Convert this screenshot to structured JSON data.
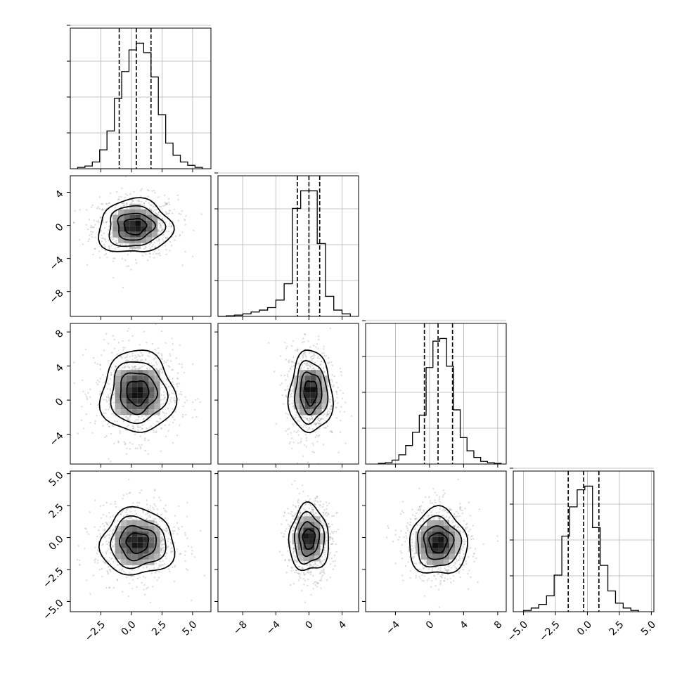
{
  "chart_data": {
    "type": "corner",
    "grid": true,
    "parameters": [
      {
        "range": [
          -5.0,
          6.5
        ],
        "ticks": [
          -2.5,
          0.0,
          2.5,
          5.0
        ],
        "tick_labels": [
          "−2.5",
          "0.0",
          "2.5",
          "5.0"
        ],
        "quantiles": [
          -1.0,
          0.4,
          1.6
        ],
        "hist_bins": [
          -4.4,
          -3.8,
          -3.2,
          -2.6,
          -2.0,
          -1.4,
          -0.8,
          -0.2,
          0.4,
          1.0,
          1.6,
          2.2,
          2.8,
          3.4,
          4.0,
          4.6,
          5.2,
          5.8
        ],
        "hist_counts": [
          0.01,
          0.02,
          0.05,
          0.14,
          0.28,
          0.52,
          0.72,
          0.88,
          0.93,
          0.86,
          0.68,
          0.4,
          0.19,
          0.1,
          0.05,
          0.025,
          0.01
        ]
      },
      {
        "range": [
          -11.0,
          6.0
        ],
        "ticks": [
          -8,
          -4,
          0,
          4
        ],
        "tick_labels": [
          "−8",
          "−4",
          "0",
          "4"
        ],
        "quantiles": [
          -1.4,
          0.0,
          1.3
        ],
        "hist_bins": [
          -11.0,
          -10.0,
          -9.0,
          -8.0,
          -7.0,
          -6.0,
          -5.0,
          -4.0,
          -3.0,
          -2.0,
          -1.0,
          0.0,
          1.0,
          2.0,
          3.0,
          4.0,
          5.0
        ],
        "hist_counts": [
          0.0,
          0.005,
          0.01,
          0.02,
          0.035,
          0.05,
          0.07,
          0.13,
          0.26,
          0.86,
          1.0,
          1.0,
          0.58,
          0.16,
          0.05,
          0.02
        ]
      },
      {
        "range": [
          -7.5,
          9.0
        ],
        "ticks": [
          -4,
          0,
          4,
          8
        ],
        "tick_labels": [
          "−4",
          "0",
          "4",
          "8"
        ],
        "quantiles": [
          -0.6,
          1.0,
          2.7
        ],
        "hist_bins": [
          -6.0,
          -5.2,
          -4.4,
          -3.6,
          -2.8,
          -2.0,
          -1.2,
          -0.4,
          0.4,
          1.2,
          2.0,
          2.8,
          3.6,
          4.4,
          5.2,
          6.0,
          6.8,
          7.6,
          8.4
        ],
        "hist_counts": [
          0.005,
          0.01,
          0.03,
          0.07,
          0.14,
          0.24,
          0.37,
          0.73,
          0.93,
          0.95,
          0.74,
          0.41,
          0.2,
          0.1,
          0.05,
          0.02,
          0.01,
          0.005
        ]
      },
      {
        "range": [
          -5.8,
          5.2
        ],
        "ticks": [
          -5.0,
          -2.5,
          0.0,
          2.5,
          5.0
        ],
        "tick_labels": [
          "−5.0",
          "−2.5",
          "0.0",
          "2.5",
          "5.0"
        ],
        "quantiles": [
          -1.5,
          -0.3,
          0.9
        ],
        "hist_bins": [
          -5.0,
          -4.4,
          -3.8,
          -3.2,
          -2.6,
          -2.0,
          -1.4,
          -0.8,
          -0.2,
          0.4,
          1.0,
          1.6,
          2.2,
          2.8,
          3.4,
          4.0
        ],
        "hist_counts": [
          0.01,
          0.03,
          0.06,
          0.13,
          0.3,
          0.62,
          0.86,
          1.0,
          1.03,
          0.69,
          0.38,
          0.17,
          0.07,
          0.03,
          0.01
        ]
      }
    ],
    "pairs": [
      {
        "row": 1,
        "col": 0,
        "center": [
          0.3,
          -0.1
        ],
        "sigma": [
          1.5,
          1.6
        ],
        "contour_levels": [
          0.6,
          1.0,
          1.5,
          2.0
        ],
        "shift": [
          0.0,
          0.4
        ]
      },
      {
        "row": 2,
        "col": 0,
        "center": [
          0.5,
          0.9
        ],
        "sigma": [
          1.5,
          2.4
        ],
        "contour_levels": [
          0.6,
          1.0,
          1.5,
          2.0
        ],
        "shift": [
          0.0,
          0.0
        ]
      },
      {
        "row": 2,
        "col": 1,
        "center": [
          0.2,
          0.9
        ],
        "sigma": [
          1.3,
          2.4
        ],
        "contour_levels": [
          0.6,
          1.0,
          1.5,
          2.0
        ],
        "shift": [
          0.0,
          0.0
        ]
      },
      {
        "row": 3,
        "col": 0,
        "center": [
          0.5,
          -0.4
        ],
        "sigma": [
          1.5,
          1.3
        ],
        "contour_levels": [
          0.6,
          1.0,
          1.5,
          2.0
        ],
        "shift": [
          0.0,
          0.0
        ]
      },
      {
        "row": 3,
        "col": 1,
        "center": [
          0.0,
          -0.1
        ],
        "sigma": [
          1.2,
          1.3
        ],
        "contour_levels": [
          0.6,
          1.0,
          1.5,
          2.0
        ],
        "shift": [
          0.0,
          0.0
        ]
      },
      {
        "row": 3,
        "col": 2,
        "center": [
          1.0,
          -0.4
        ],
        "sigma": [
          1.7,
          1.3
        ],
        "contour_levels": [
          0.6,
          1.0,
          1.5,
          2.0
        ],
        "shift": [
          0.0,
          0.0
        ]
      }
    ],
    "colors": {
      "line": "#000000",
      "scatter": "#9a9a9a",
      "grid": "#b0b0b0"
    }
  }
}
